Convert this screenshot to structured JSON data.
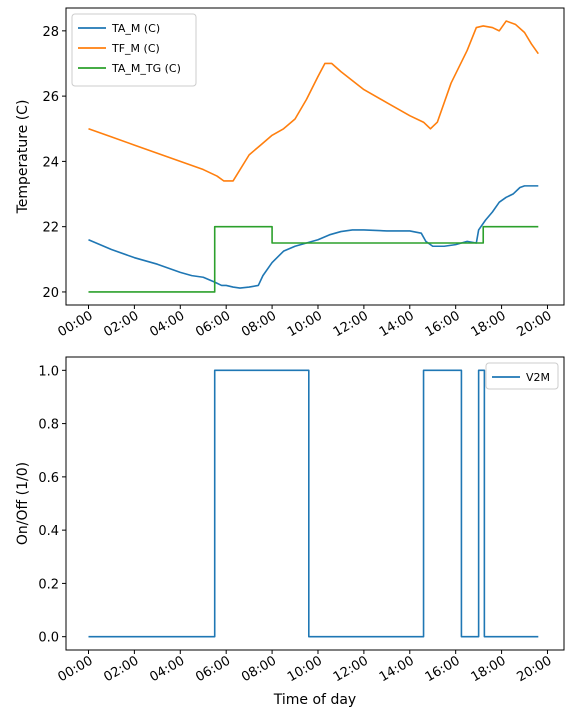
{
  "chart_data": [
    {
      "type": "line",
      "title": "",
      "xlabel": "",
      "ylabel": "Temperature (C)",
      "x_tick_labels": [
        "00:00",
        "02:00",
        "04:00",
        "06:00",
        "08:00",
        "10:00",
        "12:00",
        "14:00",
        "16:00",
        "18:00",
        "20:00"
      ],
      "x_tick_hours": [
        0,
        2,
        4,
        6,
        8,
        10,
        12,
        14,
        16,
        18,
        20
      ],
      "xlim": [
        -0.98,
        20.72
      ],
      "ylim": [
        19.6,
        28.7
      ],
      "y_ticks": [
        20,
        22,
        24,
        26,
        28
      ],
      "y_tick_labels": [
        "20",
        "22",
        "24",
        "26",
        "28"
      ],
      "grid": false,
      "legend_position": "upper left",
      "series": [
        {
          "name": "TA_M (C)",
          "color": "#1f77b4",
          "x": [
            0,
            0.5,
            1,
            2,
            3,
            4,
            4.5,
            5,
            5.5,
            5.8,
            6,
            6.3,
            6.6,
            7,
            7.4,
            7.6,
            8,
            8.5,
            9,
            9.5,
            10,
            10.5,
            11,
            11.5,
            12,
            13,
            14,
            14.5,
            14.7,
            15,
            15.5,
            16,
            16.5,
            16.9,
            17,
            17.3,
            17.6,
            17.9,
            18.2,
            18.5,
            18.8,
            19,
            19.3,
            19.6
          ],
          "y": [
            21.6,
            21.45,
            21.3,
            21.05,
            20.85,
            20.6,
            20.5,
            20.45,
            20.3,
            20.2,
            20.2,
            20.15,
            20.12,
            20.15,
            20.2,
            20.5,
            20.9,
            21.25,
            21.4,
            21.5,
            21.6,
            21.75,
            21.85,
            21.9,
            21.9,
            21.87,
            21.87,
            21.8,
            21.55,
            21.4,
            21.4,
            21.45,
            21.55,
            21.5,
            21.9,
            22.2,
            22.45,
            22.75,
            22.9,
            23.0,
            23.2,
            23.25,
            23.25,
            23.25
          ]
        },
        {
          "name": "TF_M (C)",
          "color": "#ff7f0e",
          "x": [
            0,
            1,
            2,
            3,
            4,
            5,
            5.6,
            5.9,
            6.3,
            7,
            7.5,
            8,
            8.5,
            9,
            9.5,
            10,
            10.3,
            10.6,
            11,
            12,
            13,
            14,
            14.6,
            14.9,
            15.2,
            15.8,
            16.5,
            16.9,
            17.2,
            17.6,
            17.9,
            18.2,
            18.6,
            19,
            19.3,
            19.6
          ],
          "y": [
            25.0,
            24.75,
            24.5,
            24.25,
            24.0,
            23.75,
            23.55,
            23.4,
            23.4,
            24.2,
            24.5,
            24.8,
            25.0,
            25.3,
            25.9,
            26.6,
            27.0,
            27.0,
            26.75,
            26.2,
            25.8,
            25.4,
            25.2,
            25.0,
            25.2,
            26.4,
            27.4,
            28.1,
            28.15,
            28.1,
            28.0,
            28.3,
            28.2,
            27.95,
            27.6,
            27.3
          ]
        },
        {
          "name": "TA_M_TG (C)",
          "color": "#2ca02c",
          "x": [
            0,
            5.5,
            5.5,
            8,
            8,
            17.2,
            17.2,
            19.6
          ],
          "y": [
            20,
            20,
            22,
            22,
            21.5,
            21.5,
            22,
            22
          ]
        }
      ]
    },
    {
      "type": "line",
      "title": "",
      "xlabel": "Time of day",
      "ylabel": "On/Off (1/0)",
      "x_tick_labels": [
        "00:00",
        "02:00",
        "04:00",
        "06:00",
        "08:00",
        "10:00",
        "12:00",
        "14:00",
        "16:00",
        "18:00",
        "20:00"
      ],
      "x_tick_hours": [
        0,
        2,
        4,
        6,
        8,
        10,
        12,
        14,
        16,
        18,
        20
      ],
      "xlim": [
        -0.98,
        20.72
      ],
      "ylim": [
        -0.05,
        1.05
      ],
      "y_ticks": [
        0,
        0.2,
        0.4,
        0.6,
        0.8,
        1.0
      ],
      "y_tick_labels": [
        "0.0",
        "0.2",
        "0.4",
        "0.6",
        "0.8",
        "1.0"
      ],
      "grid": false,
      "legend_position": "upper right",
      "series": [
        {
          "name": "V2M",
          "color": "#1f77b4",
          "x": [
            0,
            5.5,
            5.5,
            9.6,
            9.6,
            14.6,
            14.6,
            16.25,
            16.25,
            17.0,
            17.0,
            17.25,
            17.25,
            19.6
          ],
          "y": [
            0,
            0,
            1,
            1,
            0,
            0,
            1,
            1,
            0,
            0,
            1,
            1,
            0,
            0
          ]
        }
      ]
    }
  ]
}
